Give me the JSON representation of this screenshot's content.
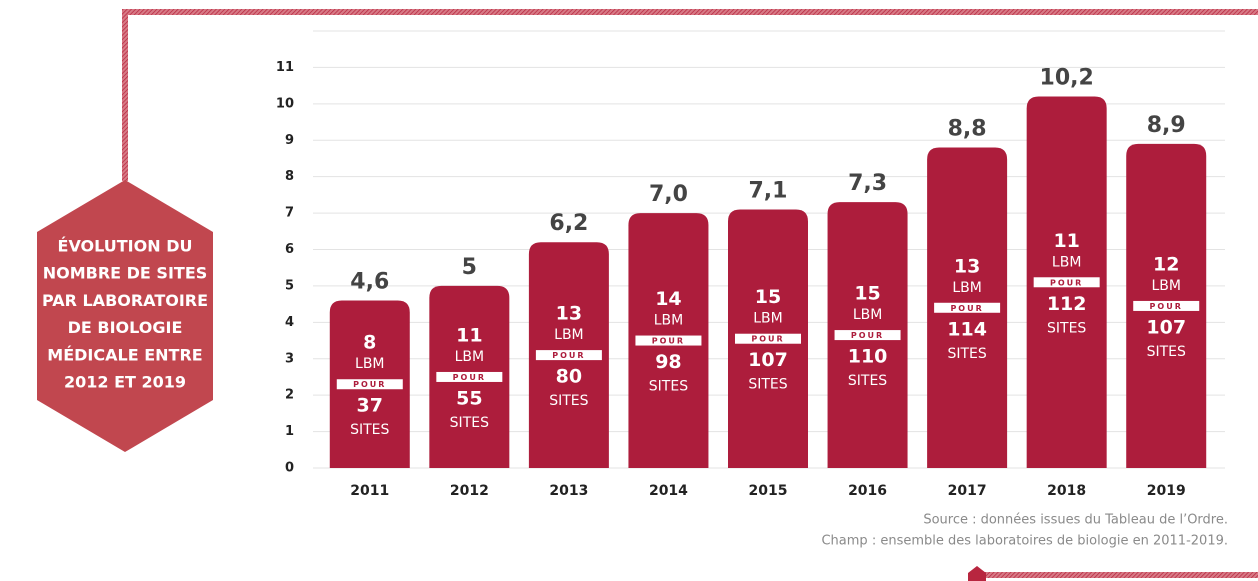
{
  "chart_data": {
    "type": "bar",
    "title": [
      "ÉVOLUTION DU",
      "NOMBRE DE SITES",
      "PAR LABORATOIRE",
      "DE BIOLOGIE",
      "MÉDICALE ENTRE",
      "2012 ET 2019"
    ],
    "categories": [
      "2011",
      "2012",
      "2013",
      "2014",
      "2015",
      "2016",
      "2017",
      "2018",
      "2019"
    ],
    "values": [
      4.6,
      5,
      6.2,
      7.0,
      7.1,
      7.3,
      8.8,
      10.2,
      8.9
    ],
    "value_labels": [
      "4,6",
      "5",
      "6,2",
      "7,0",
      "7,1",
      "7,3",
      "8,8",
      "10,2",
      "8,9"
    ],
    "lbm": [
      8,
      11,
      13,
      14,
      15,
      15,
      13,
      11,
      12
    ],
    "sites": [
      37,
      55,
      80,
      98,
      107,
      110,
      114,
      112,
      107
    ],
    "lbm_label": "LBM",
    "pour_label": "POUR",
    "sites_label": "SITES",
    "color": "#ad1d3c",
    "ylim": [
      0,
      12
    ],
    "yticks": [
      0,
      1,
      2,
      3,
      4,
      5,
      6,
      7,
      8,
      9,
      10,
      11
    ],
    "grid": true,
    "notes": [
      "Source : données issues du Tableau de l’Ordre.",
      "Champ : ensemble des laboratoires de biologie en 2011-2019."
    ]
  }
}
